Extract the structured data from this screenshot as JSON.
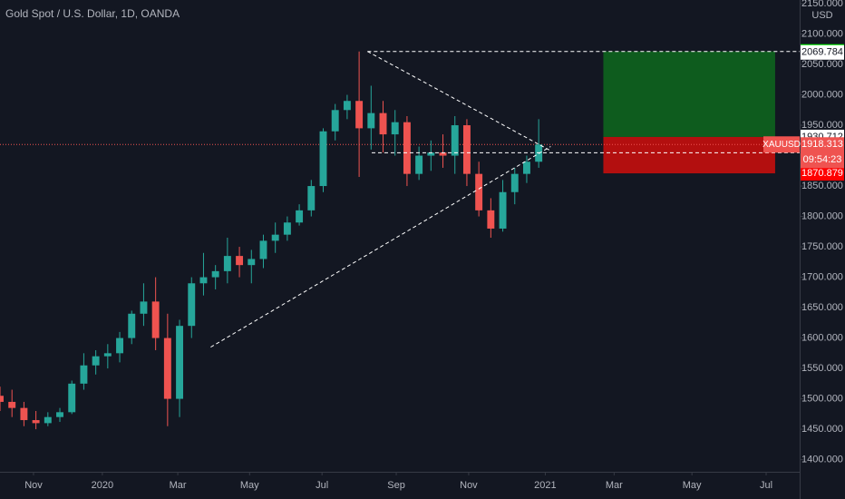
{
  "chart_data": {
    "type": "candlestick",
    "title": "Gold Spot / U.S. Dollar, 1D, OANDA",
    "currency": "USD",
    "up_color": "#26a69a",
    "down_color": "#ef5350",
    "grid": false,
    "xlim": [
      0,
      133.6
    ],
    "ylim": [
      1380,
      2156
    ],
    "xticks": [
      {
        "value": 5.6,
        "label": "Nov"
      },
      {
        "value": 17.1,
        "label": "2020"
      },
      {
        "value": 29.7,
        "label": "Mar"
      },
      {
        "value": 41.7,
        "label": "May"
      },
      {
        "value": 53.8,
        "label": "Jul"
      },
      {
        "value": 66.2,
        "label": "Sep"
      },
      {
        "value": 78.3,
        "label": "Nov"
      },
      {
        "value": 91.1,
        "label": "2021"
      },
      {
        "value": 102.6,
        "label": "Mar"
      },
      {
        "value": 115.6,
        "label": "May"
      },
      {
        "value": 128,
        "label": "Jul"
      }
    ],
    "yticks": [
      {
        "value": 1400,
        "label": "1400.000"
      },
      {
        "value": 1450,
        "label": "1450.000"
      },
      {
        "value": 1500,
        "label": "1500.000"
      },
      {
        "value": 1550,
        "label": "1550.000"
      },
      {
        "value": 1600,
        "label": "1600.000"
      },
      {
        "value": 1650,
        "label": "1650.000"
      },
      {
        "value": 1700,
        "label": "1700.000"
      },
      {
        "value": 1750,
        "label": "1750.000"
      },
      {
        "value": 1800,
        "label": "1800.000"
      },
      {
        "value": 1850,
        "label": "1850.000"
      },
      {
        "value": 1900,
        "label": "1900.000"
      },
      {
        "value": 1950,
        "label": "1950.000"
      },
      {
        "value": 2000,
        "label": "2000.000"
      },
      {
        "value": 2050,
        "label": "2050.000"
      },
      {
        "value": 2100,
        "label": "2100.000"
      },
      {
        "value": 2150,
        "label": "2150.000"
      }
    ],
    "x": [
      0,
      2,
      4,
      6,
      8,
      10,
      12,
      14,
      16,
      18,
      20,
      22,
      24,
      26,
      28,
      30,
      32,
      34,
      36,
      38,
      40,
      42,
      44,
      46,
      48,
      50,
      52,
      54,
      56,
      58,
      60,
      62,
      64,
      66,
      68,
      70,
      72,
      74,
      76,
      78,
      80,
      82,
      84,
      86,
      88,
      90
    ],
    "open": [
      1505,
      1495,
      1485,
      1465,
      1460,
      1470,
      1478,
      1525,
      1555,
      1570,
      1575,
      1600,
      1640,
      1660,
      1600,
      1500,
      1620,
      1690,
      1700,
      1710,
      1735,
      1720,
      1730,
      1760,
      1770,
      1790,
      1810,
      1850,
      1940,
      1975,
      1990,
      1945,
      1970,
      1935,
      1955,
      1870,
      1900,
      1905,
      1900,
      1950,
      1870,
      1810,
      1780,
      1840,
      1870,
      1890
    ],
    "high": [
      1520,
      1515,
      1495,
      1480,
      1478,
      1485,
      1530,
      1575,
      1580,
      1590,
      1610,
      1645,
      1690,
      1700,
      1640,
      1630,
      1700,
      1740,
      1720,
      1765,
      1750,
      1745,
      1770,
      1790,
      1800,
      1820,
      1860,
      1945,
      1985,
      2000,
      2071.4,
      2015,
      1990,
      1975,
      1965,
      1915,
      1925,
      1935,
      1965,
      1960,
      1890,
      1830,
      1860,
      1880,
      1900,
      1960
    ],
    "low": [
      1480,
      1470,
      1455,
      1450,
      1455,
      1462,
      1475,
      1515,
      1540,
      1550,
      1560,
      1590,
      1620,
      1580,
      1455,
      1470,
      1600,
      1670,
      1680,
      1690,
      1700,
      1690,
      1715,
      1740,
      1760,
      1785,
      1800,
      1840,
      1925,
      1960,
      1865,
      1910,
      1905,
      1900,
      1850,
      1860,
      1875,
      1880,
      1870,
      1850,
      1800,
      1765,
      1775,
      1820,
      1855,
      1880
    ],
    "close": [
      1495,
      1485,
      1465,
      1460,
      1470,
      1478,
      1525,
      1555,
      1570,
      1575,
      1600,
      1640,
      1660,
      1600,
      1500,
      1620,
      1690,
      1700,
      1710,
      1735,
      1720,
      1730,
      1760,
      1770,
      1790,
      1810,
      1850,
      1940,
      1975,
      1990,
      1945,
      1970,
      1935,
      1955,
      1870,
      1900,
      1905,
      1900,
      1950,
      1870,
      1810,
      1780,
      1840,
      1870,
      1890,
      1918.3
    ],
    "trendlines": [
      {
        "x": [
          61.4,
          92
        ],
        "y": [
          2071.4,
          1908
        ]
      },
      {
        "x": [
          35.2,
          92
        ],
        "y": [
          1585,
          1915
        ]
      }
    ],
    "levels": [
      {
        "x_start": 61.4,
        "value": 2071.401
      },
      {
        "x_start": 62.1,
        "value": 1904.786
      }
    ],
    "position": {
      "x_start": 100.8,
      "x_end": 129.5,
      "target": 2071.401,
      "entry": 1930.712,
      "stop": 1870.879
    },
    "price_labels": [
      {
        "value": 2071.401,
        "color": "#00e600",
        "text_color": "#131722"
      },
      {
        "value": 2069.784,
        "color": "#ffffff",
        "text_color": "#131722"
      },
      {
        "value": 1930.712,
        "color": "#ffffff",
        "text_color": "#131722"
      },
      {
        "value": 1904.786,
        "color": "#ffffff",
        "text_color": "#131722"
      },
      {
        "value": 1870.879,
        "color": "#ff0000",
        "text_color": "#ffffff"
      }
    ],
    "last_price": {
      "symbol": "XAUUSD",
      "value": 1918.313,
      "countdown": "09:54:23",
      "color": "#ef5350"
    }
  }
}
